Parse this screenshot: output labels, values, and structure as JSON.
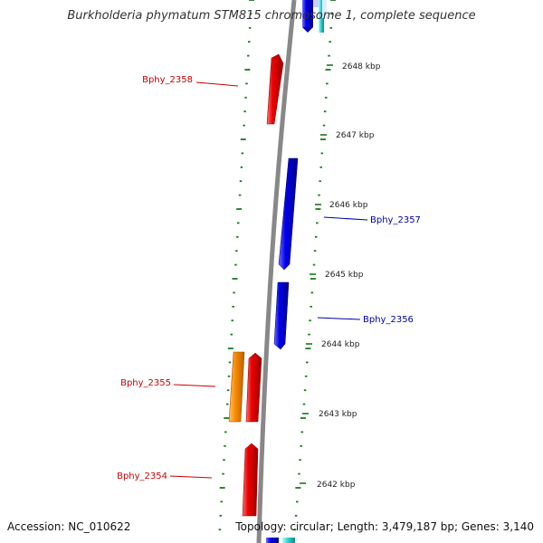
{
  "title": "Burkholderia phymatum STM815 chromosome 1, complete sequence",
  "accession": "Accession: NC_010622",
  "summary": "Topology: circular; Length: 3,479,187 bp; Genes: 3,140",
  "colors": {
    "forward": "#0000ee",
    "reverse": "#ee0000",
    "other": "#ff8c00",
    "cyan": "#22cccc",
    "backbone": "#888888",
    "ticks": "#1a7a1a",
    "label_red": "#cc0000",
    "label_blue": "#0000aa"
  },
  "scale": {
    "unit": "kbp",
    "ticks": [
      "2648 kbp",
      "2647 kbp",
      "2646 kbp",
      "2645 kbp",
      "2644 kbp",
      "2643 kbp",
      "2642 kbp"
    ]
  },
  "genes": [
    {
      "label": "Bphy_2358",
      "strand": "reverse",
      "color": "red"
    },
    {
      "label": "Bphy_2357",
      "strand": "forward",
      "color": "blue"
    },
    {
      "label": "Bphy_2356",
      "strand": "forward",
      "color": "blue"
    },
    {
      "label": "Bphy_2355",
      "strand": "reverse",
      "color": "red"
    },
    {
      "label": "",
      "strand": "reverse",
      "color": "orange"
    },
    {
      "label": "Bphy_2354",
      "strand": "reverse",
      "color": "red"
    }
  ]
}
